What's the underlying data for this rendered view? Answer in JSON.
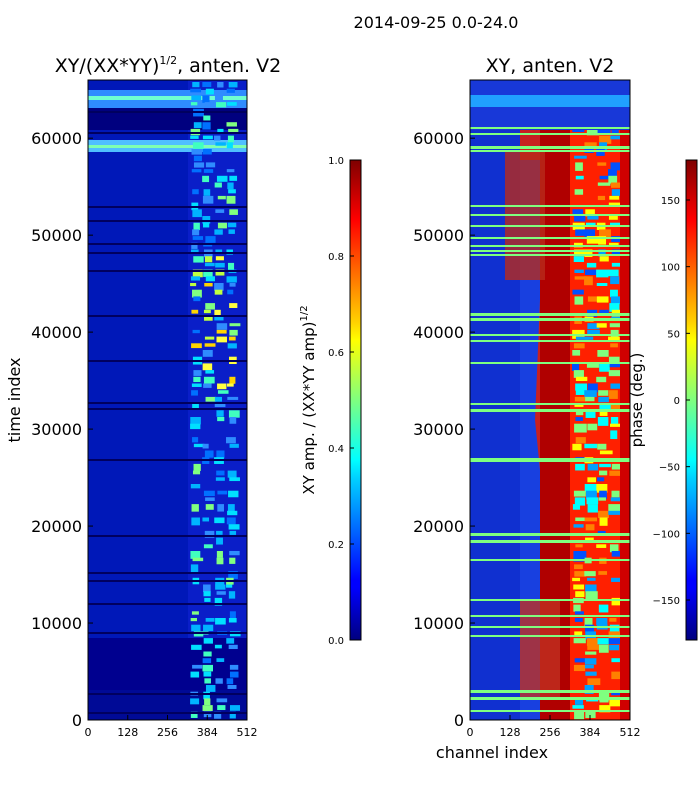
{
  "figure_title": "2014-09-25 0.0-24.0",
  "chart_data": [
    {
      "type": "heatmap",
      "title": "XY/(XX*YY)^{1/2}, anten. V2",
      "title_main": "XY/(XX*YY)",
      "title_sup": "1/2",
      "title_tail": ", anten. V2",
      "xlabel": "",
      "ylabel": "time index",
      "xlim": [
        0,
        512
      ],
      "ylim": [
        0,
        66000
      ],
      "xticks": [
        0,
        128,
        256,
        384,
        512
      ],
      "yticks": [
        0,
        10000,
        20000,
        30000,
        40000,
        50000,
        60000
      ],
      "colorbar": {
        "label": "XY amp. / (XX*YY amp)^{1/2}",
        "label_main": "XY amp. / (XX*YY amp)",
        "label_sup": "1/2",
        "colormap": "jet",
        "range": [
          0.0,
          1.0
        ],
        "ticks": [
          "0.0",
          "0.2",
          "0.4",
          "0.6",
          "0.8",
          "1.0"
        ]
      }
    },
    {
      "type": "heatmap",
      "title": "XY, anten. V2",
      "xlabel": "channel index",
      "ylabel": "",
      "xlim": [
        0,
        512
      ],
      "ylim": [
        0,
        66000
      ],
      "xticks": [
        0,
        128,
        256,
        384,
        512
      ],
      "yticks": [
        0,
        10000,
        20000,
        30000,
        40000,
        50000,
        60000
      ],
      "colorbar": {
        "label": "phase (deg.)",
        "colormap": "jet",
        "range": [
          -180,
          180
        ],
        "ticks": [
          "−150",
          "−100",
          "−50",
          "0",
          "50",
          "100",
          "150"
        ]
      }
    }
  ],
  "colors": {
    "jet_darkblue": "#00007f",
    "jet_blue": "#0000ff",
    "jet_cyan": "#00ffff",
    "jet_green": "#7fff7f",
    "jet_yellow": "#ffff00",
    "jet_red": "#ff0000",
    "jet_darkred": "#7f0000",
    "band_phase": "#7fff7f"
  }
}
